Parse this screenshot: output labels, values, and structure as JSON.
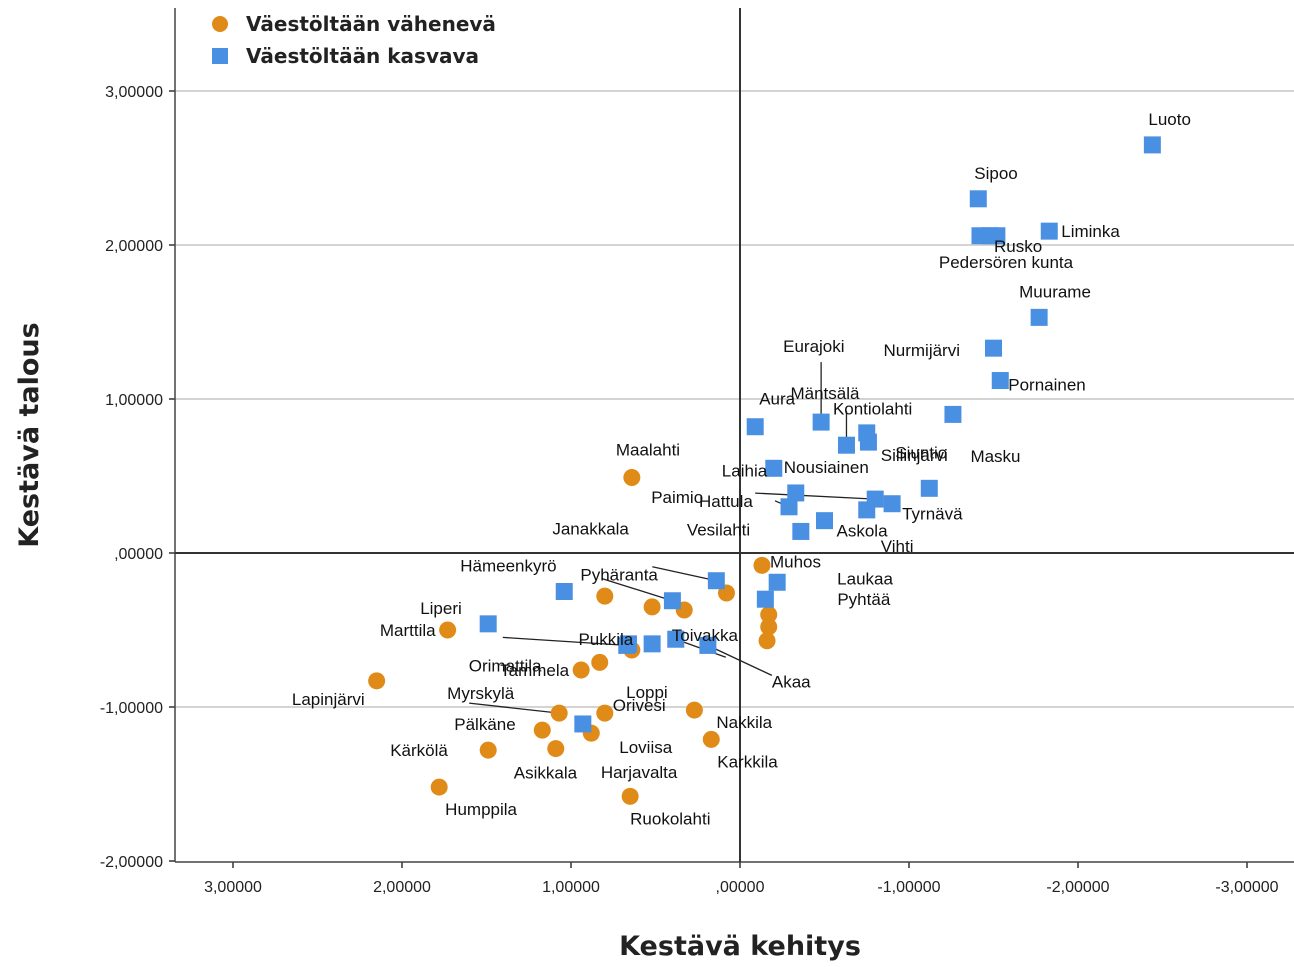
{
  "chart_data": {
    "type": "scatter",
    "xlabel": "Kestävä kehitys",
    "ylabel": "Kestävä talous",
    "xlim": [
      3.3,
      -3.3
    ],
    "ylim": [
      -2.0,
      3.5
    ],
    "x_reversed": true,
    "xticks": [
      3,
      2,
      1,
      0,
      -1,
      -2,
      -3
    ],
    "xtick_labels": [
      "3,00000",
      "2,00000",
      "1,00000",
      ",00000",
      "-1,00000",
      "-2,00000",
      "-3,00000"
    ],
    "yticks": [
      3,
      2,
      1,
      0,
      -1,
      -2
    ],
    "ytick_labels": [
      "3,00000",
      "2,00000",
      "1,00000",
      ",00000",
      "-1,00000",
      "-2,00000"
    ],
    "grid": "horizontal",
    "reference_lines": {
      "x": 0,
      "y": 0
    },
    "legend_position": "top-left",
    "colors": {
      "declining": "#e08a17",
      "growing": "#4a90e2"
    },
    "series": [
      {
        "name": "Väestöltään vähenevä",
        "marker": "circle",
        "color": "#e08a17",
        "points": [
          {
            "label": "Maalahti",
            "x": 0.64,
            "y": 0.49
          },
          {
            "label": "Muhos",
            "x": -0.13,
            "y": -0.08
          },
          {
            "label": "",
            "x": 0.8,
            "y": -0.28
          },
          {
            "label": "",
            "x": 0.08,
            "y": -0.26
          },
          {
            "label": "",
            "x": 0.52,
            "y": -0.35
          },
          {
            "label": "",
            "x": 0.33,
            "y": -0.37
          },
          {
            "label": "",
            "x": -0.17,
            "y": -0.4
          },
          {
            "label": "",
            "x": -0.17,
            "y": -0.48
          },
          {
            "label": "Marttila",
            "x": 1.73,
            "y": -0.5
          },
          {
            "label": "",
            "x": 0.64,
            "y": -0.63
          },
          {
            "label": "",
            "x": -0.16,
            "y": -0.57
          },
          {
            "label": "",
            "x": 0.83,
            "y": -0.71
          },
          {
            "label": "Tammela",
            "x": 0.94,
            "y": -0.76
          },
          {
            "label": "Lapinjärvi",
            "x": 2.15,
            "y": -0.83
          },
          {
            "label": "Myrskylä",
            "x": 1.07,
            "y": -1.04
          },
          {
            "label": "Orivesi",
            "x": 0.8,
            "y": -1.04
          },
          {
            "label": "Nakkila",
            "x": 0.27,
            "y": -1.02
          },
          {
            "label": "Pälkäne",
            "x": 1.17,
            "y": -1.15
          },
          {
            "label": "Loviisa",
            "x": 0.88,
            "y": -1.17
          },
          {
            "label": "Kärkölä",
            "x": 1.49,
            "y": -1.28
          },
          {
            "label": "Asikkala",
            "x": 1.09,
            "y": -1.27
          },
          {
            "label": "Karkkila",
            "x": 0.17,
            "y": -1.21
          },
          {
            "label": "Humppila",
            "x": 1.78,
            "y": -1.52
          },
          {
            "label": "Ruokolahti",
            "x": 0.65,
            "y": -1.58
          }
        ]
      },
      {
        "name": "Väestöltään kasvava",
        "marker": "square",
        "color": "#4a90e2",
        "points": [
          {
            "label": "Luoto",
            "x": -2.44,
            "y": 2.65
          },
          {
            "label": "Sipoo",
            "x": -1.41,
            "y": 2.3
          },
          {
            "label": "Rusko",
            "x": -1.42,
            "y": 2.06
          },
          {
            "label": "",
            "x": -1.48,
            "y": 2.06
          },
          {
            "label": "Pedersören kunta",
            "x": -1.52,
            "y": 2.06
          },
          {
            "label": "Liminka",
            "x": -1.83,
            "y": 2.09
          },
          {
            "label": "Muurame",
            "x": -1.77,
            "y": 1.53
          },
          {
            "label": "Nurmijärvi",
            "x": -1.5,
            "y": 1.33
          },
          {
            "label": "Pornainen",
            "x": -1.54,
            "y": 1.12
          },
          {
            "label": "Kontiolahti",
            "x": -1.26,
            "y": 0.9
          },
          {
            "label": "Eurajoki",
            "x": -0.48,
            "y": 0.85
          },
          {
            "label": "Aura",
            "x": -0.09,
            "y": 0.82
          },
          {
            "label": "Siilinjärvi",
            "x": -0.75,
            "y": 0.78
          },
          {
            "label": "Masku",
            "x": -0.76,
            "y": 0.72
          },
          {
            "label": "Mäntsälä",
            "x": -0.63,
            "y": 0.7
          },
          {
            "label": "Laihia",
            "x": -0.2,
            "y": 0.55
          },
          {
            "label": "Siuntio",
            "x": -1.12,
            "y": 0.42
          },
          {
            "label": "Nousiainen",
            "x": -0.33,
            "y": 0.39
          },
          {
            "label": "Hattula",
            "x": -0.29,
            "y": 0.3
          },
          {
            "label": "Tyrnävä",
            "x": -0.9,
            "y": 0.32
          },
          {
            "label": "Paimio",
            "x": -0.8,
            "y": 0.35
          },
          {
            "label": "Vihti",
            "x": -0.75,
            "y": 0.28
          },
          {
            "label": "Askola",
            "x": -0.5,
            "y": 0.21
          },
          {
            "label": "Vesilahti",
            "x": -0.36,
            "y": 0.14
          },
          {
            "label": "Janakkala",
            "x": 0.14,
            "y": -0.18
          },
          {
            "label": "Laukaa",
            "x": -0.22,
            "y": -0.19
          },
          {
            "label": "Pyhtää",
            "x": -0.15,
            "y": -0.3
          },
          {
            "label": "Hämeenkyrö",
            "x": 1.04,
            "y": -0.25
          },
          {
            "label": "Pyhäranta",
            "x": 0.4,
            "y": -0.31
          },
          {
            "label": "Liperi",
            "x": 1.49,
            "y": -0.46
          },
          {
            "label": "Orimattila",
            "x": 0.67,
            "y": -0.6
          },
          {
            "label": "Loppi",
            "x": 0.52,
            "y": -0.59
          },
          {
            "label": "Toivakka",
            "x": 0.38,
            "y": -0.56
          },
          {
            "label": "Pukkila",
            "x": 0.66,
            "y": -0.59
          },
          {
            "label": "Akaa",
            "x": 0.19,
            "y": -0.6
          },
          {
            "label": "Harjavalta",
            "x": 0.93,
            "y": -1.11
          }
        ]
      }
    ]
  }
}
